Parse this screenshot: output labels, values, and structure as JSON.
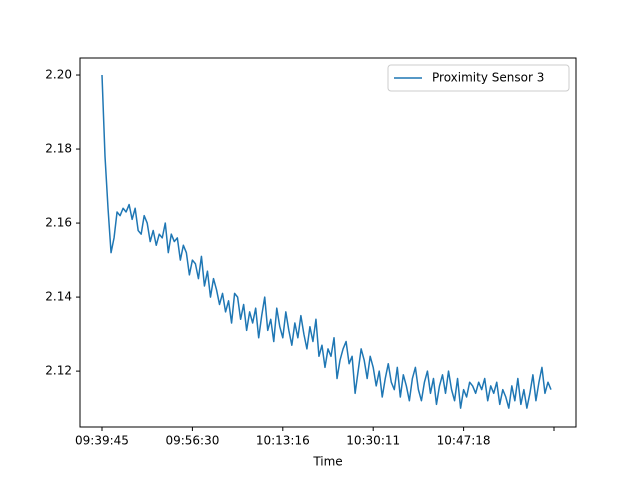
{
  "chart_data": {
    "type": "line",
    "x_label": "Time",
    "x": [
      0,
      1,
      2,
      3,
      4,
      5,
      6,
      7,
      8,
      9,
      10,
      11,
      12,
      13,
      14,
      15,
      16,
      17,
      18,
      19,
      20,
      21,
      22,
      23,
      24,
      25,
      26,
      27,
      28,
      29,
      30,
      31,
      32,
      33,
      34,
      35,
      36,
      37,
      38,
      39,
      40,
      41,
      42,
      43,
      44,
      45,
      46,
      47,
      48,
      49,
      50,
      51,
      52,
      53,
      54,
      55,
      56,
      57,
      58,
      59,
      60,
      61,
      62,
      63,
      64,
      65,
      66,
      67,
      68,
      69,
      70,
      71,
      72,
      73,
      74,
      75,
      76,
      77,
      78,
      79,
      80,
      81,
      82,
      83,
      84,
      85,
      86,
      87,
      88,
      89,
      90,
      91,
      92,
      93,
      94,
      95,
      96,
      97,
      98,
      99,
      100,
      101,
      102,
      103,
      104,
      105,
      106,
      107,
      108,
      109,
      110,
      111,
      112,
      113,
      114,
      115,
      116,
      117,
      118,
      119,
      120,
      121,
      122,
      123,
      124,
      125,
      126,
      127,
      128,
      129,
      130,
      131,
      132,
      133,
      134,
      135,
      136,
      137,
      138,
      139,
      140,
      141,
      142,
      143,
      144,
      145,
      146,
      147,
      148,
      149
    ],
    "series": [
      {
        "name": "Proximity Sensor 3",
        "color": "#1f77b4",
        "values": [
          2.2,
          2.178,
          2.164,
          2.152,
          2.156,
          2.163,
          2.162,
          2.164,
          2.163,
          2.165,
          2.161,
          2.164,
          2.158,
          2.157,
          2.162,
          2.16,
          2.155,
          2.158,
          2.154,
          2.157,
          2.156,
          2.16,
          2.152,
          2.157,
          2.155,
          2.156,
          2.15,
          2.154,
          2.152,
          2.146,
          2.15,
          2.149,
          2.145,
          2.151,
          2.143,
          2.147,
          2.14,
          2.145,
          2.142,
          2.138,
          2.141,
          2.136,
          2.139,
          2.133,
          2.141,
          2.14,
          2.134,
          2.138,
          2.131,
          2.136,
          2.133,
          2.137,
          2.129,
          2.135,
          2.14,
          2.131,
          2.134,
          2.128,
          2.137,
          2.132,
          2.129,
          2.136,
          2.131,
          2.127,
          2.133,
          2.129,
          2.135,
          2.13,
          2.126,
          2.132,
          2.128,
          2.134,
          2.124,
          2.127,
          2.121,
          2.126,
          2.124,
          2.129,
          2.118,
          2.123,
          2.126,
          2.128,
          2.122,
          2.124,
          2.114,
          2.12,
          2.126,
          2.123,
          2.118,
          2.124,
          2.121,
          2.116,
          2.12,
          2.113,
          2.118,
          2.122,
          2.117,
          2.115,
          2.121,
          2.113,
          2.119,
          2.116,
          2.112,
          2.118,
          2.121,
          2.115,
          2.112,
          2.117,
          2.12,
          2.114,
          2.118,
          2.111,
          2.116,
          2.119,
          2.114,
          2.12,
          2.115,
          2.112,
          2.118,
          2.11,
          2.115,
          2.113,
          2.117,
          2.116,
          2.114,
          2.117,
          2.115,
          2.118,
          2.112,
          2.116,
          2.114,
          2.117,
          2.111,
          2.115,
          2.113,
          2.11,
          2.116,
          2.112,
          2.118,
          2.111,
          2.115,
          2.11,
          2.114,
          2.119,
          2.112,
          2.117,
          2.121,
          2.114,
          2.117,
          2.115
        ]
      }
    ],
    "xlim": [
      -7.3,
      157.3
    ],
    "xticks": [
      {
        "value": 0,
        "label": "09:39:45"
      },
      {
        "value": 30,
        "label": "09:56:30"
      },
      {
        "value": 60,
        "label": "10:13:16"
      },
      {
        "value": 90,
        "label": "10:30:11"
      },
      {
        "value": 120,
        "label": "10:47:18"
      },
      {
        "value": 150,
        "label": null
      }
    ],
    "ylim": [
      2.1049,
      2.2046
    ],
    "yticks": [
      2.12,
      2.14,
      2.16,
      2.18,
      {
        "value": 2.2,
        "label": "2.20"
      }
    ],
    "legend": "upper right",
    "grid": false
  }
}
